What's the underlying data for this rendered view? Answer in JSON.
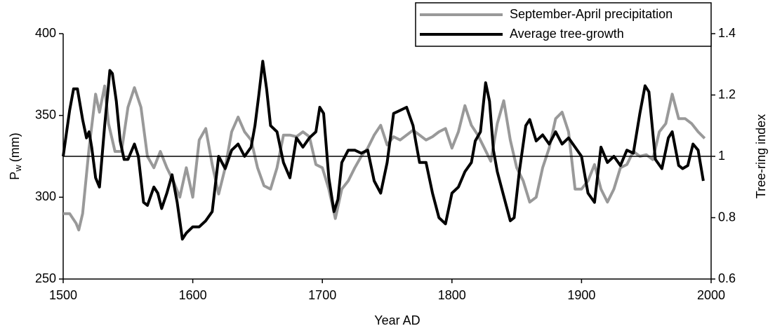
{
  "chart_data": {
    "type": "line",
    "xlabel": "Year AD",
    "ylabel": "P",
    "ylabel_subscript": "w",
    "ylabel_unit": "(mm)",
    "y2label": "Tree-ring index",
    "xlim": [
      1500,
      2000
    ],
    "xticks": [
      1500,
      1600,
      1700,
      1800,
      1900,
      2000
    ],
    "ylim": [
      250,
      400
    ],
    "yticks": [
      250,
      300,
      350,
      400
    ],
    "y2lim": [
      0.6,
      1.4
    ],
    "y2ticks": [
      0.6,
      0.8,
      1,
      1.2,
      1.4
    ],
    "reference_line_y2": 1,
    "legend": "upper right",
    "series": [
      {
        "name": "September-April precipitation",
        "color": "#999999",
        "x": [
          1500,
          1505,
          1510,
          1512,
          1515,
          1520,
          1525,
          1528,
          1532,
          1535,
          1540,
          1545,
          1550,
          1555,
          1560,
          1565,
          1570,
          1575,
          1580,
          1585,
          1590,
          1595,
          1600,
          1605,
          1610,
          1615,
          1620,
          1625,
          1630,
          1635,
          1640,
          1645,
          1650,
          1655,
          1660,
          1665,
          1670,
          1675,
          1680,
          1685,
          1690,
          1695,
          1700,
          1705,
          1710,
          1715,
          1720,
          1725,
          1730,
          1735,
          1740,
          1745,
          1750,
          1755,
          1760,
          1765,
          1770,
          1775,
          1780,
          1785,
          1790,
          1795,
          1800,
          1805,
          1810,
          1815,
          1820,
          1825,
          1830,
          1835,
          1840,
          1845,
          1850,
          1855,
          1860,
          1865,
          1870,
          1875,
          1880,
          1885,
          1890,
          1895,
          1900,
          1905,
          1910,
          1915,
          1920,
          1925,
          1930,
          1935,
          1940,
          1945,
          1950,
          1955,
          1960,
          1965,
          1970,
          1975,
          1980,
          1985,
          1990,
          1995
        ],
        "values": [
          290,
          290,
          284,
          280,
          290,
          330,
          363,
          352,
          368,
          345,
          328,
          328,
          355,
          367,
          355,
          325,
          318,
          328,
          318,
          310,
          300,
          318,
          300,
          335,
          342,
          320,
          302,
          318,
          340,
          349,
          340,
          335,
          318,
          307,
          305,
          318,
          338,
          338,
          337,
          340,
          337,
          320,
          318,
          305,
          287,
          305,
          310,
          318,
          325,
          330,
          338,
          344,
          332,
          337,
          335,
          338,
          341,
          338,
          335,
          337,
          340,
          342,
          330,
          340,
          356,
          344,
          338,
          330,
          322,
          345,
          359,
          335,
          318,
          310,
          297,
          300,
          318,
          330,
          348,
          352,
          340,
          305,
          305,
          310,
          320,
          305,
          297,
          305,
          318,
          320,
          328,
          325,
          326,
          323,
          340,
          345,
          363,
          348,
          348,
          345,
          340,
          336
        ]
      },
      {
        "name": "Average tree-growth",
        "color": "#000000",
        "axis": "y2",
        "x": [
          1500,
          1505,
          1508,
          1511,
          1515,
          1518,
          1520,
          1522,
          1525,
          1528,
          1532,
          1536,
          1538,
          1541,
          1544,
          1547,
          1550,
          1555,
          1558,
          1562,
          1565,
          1570,
          1573,
          1576,
          1580,
          1584,
          1588,
          1592,
          1595,
          1600,
          1605,
          1610,
          1615,
          1620,
          1625,
          1630,
          1635,
          1640,
          1645,
          1648,
          1651,
          1654,
          1657,
          1660,
          1665,
          1670,
          1675,
          1680,
          1685,
          1690,
          1695,
          1698,
          1701,
          1705,
          1709,
          1712,
          1715,
          1720,
          1725,
          1730,
          1735,
          1740,
          1745,
          1750,
          1755,
          1760,
          1765,
          1770,
          1772,
          1775,
          1780,
          1785,
          1790,
          1795,
          1800,
          1805,
          1810,
          1815,
          1818,
          1822,
          1826,
          1829,
          1832,
          1835,
          1840,
          1845,
          1848,
          1852,
          1857,
          1860,
          1865,
          1870,
          1875,
          1880,
          1885,
          1890,
          1895,
          1900,
          1905,
          1910,
          1915,
          1920,
          1925,
          1930,
          1935,
          1940,
          1945,
          1949,
          1952,
          1957,
          1962,
          1967,
          1970,
          1975,
          1978,
          1982,
          1986,
          1990,
          1994
        ],
        "values": [
          1.0,
          1.15,
          1.22,
          1.22,
          1.12,
          1.06,
          1.08,
          1.03,
          0.93,
          0.9,
          1.1,
          1.28,
          1.27,
          1.18,
          1.05,
          0.99,
          0.99,
          1.04,
          1.0,
          0.85,
          0.84,
          0.9,
          0.88,
          0.83,
          0.88,
          0.94,
          0.85,
          0.73,
          0.75,
          0.77,
          0.77,
          0.79,
          0.82,
          1.0,
          0.96,
          1.02,
          1.04,
          1.0,
          1.03,
          1.1,
          1.2,
          1.31,
          1.22,
          1.1,
          1.08,
          0.98,
          0.93,
          1.06,
          1.03,
          1.06,
          1.08,
          1.16,
          1.14,
          0.93,
          0.82,
          0.86,
          0.98,
          1.02,
          1.02,
          1.01,
          1.02,
          0.92,
          0.88,
          0.98,
          1.14,
          1.15,
          1.16,
          1.1,
          1.05,
          0.98,
          0.98,
          0.88,
          0.8,
          0.78,
          0.88,
          0.9,
          0.95,
          0.98,
          1.05,
          1.08,
          1.24,
          1.18,
          1.02,
          0.95,
          0.87,
          0.79,
          0.8,
          0.95,
          1.1,
          1.12,
          1.05,
          1.07,
          1.04,
          1.08,
          1.04,
          1.06,
          1.03,
          1.0,
          0.88,
          0.85,
          1.03,
          0.98,
          1.0,
          0.97,
          1.02,
          1.01,
          1.14,
          1.23,
          1.21,
          0.99,
          0.96,
          1.06,
          1.08,
          0.97,
          0.96,
          0.97,
          1.04,
          1.02,
          0.92
        ]
      }
    ]
  }
}
